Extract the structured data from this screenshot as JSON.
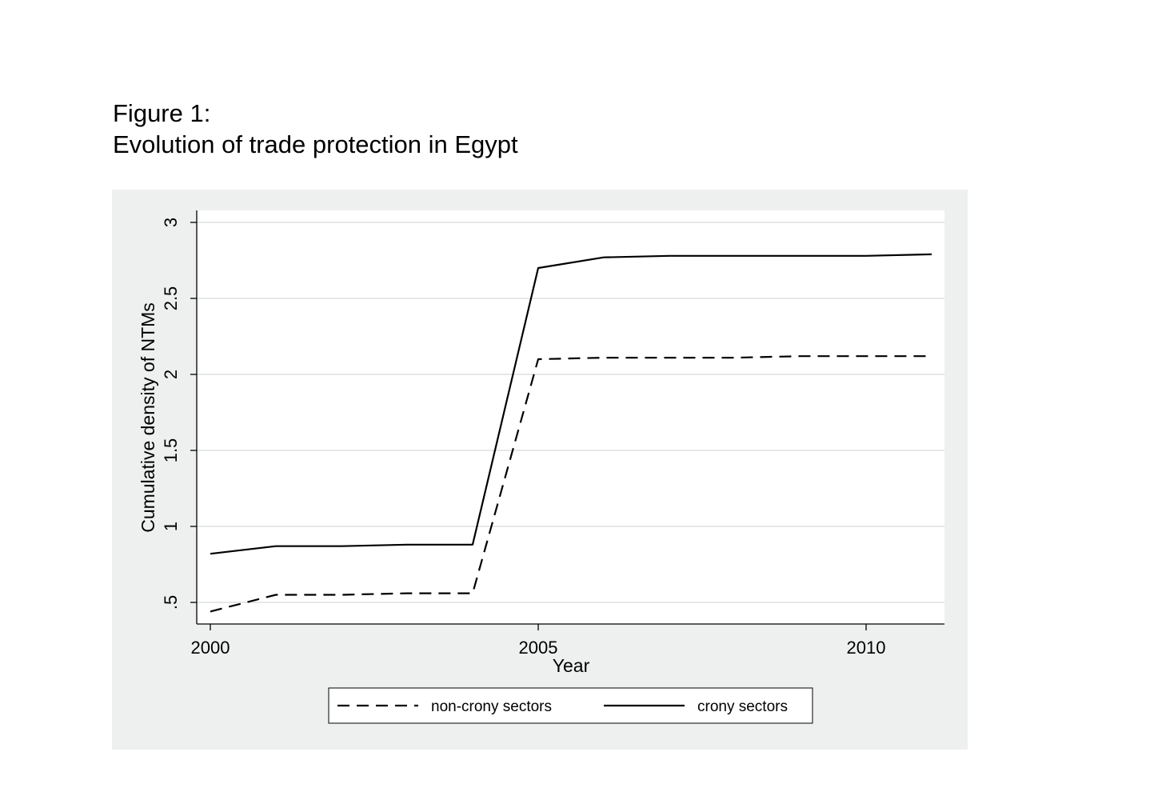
{
  "figure": {
    "label": "Figure 1:",
    "caption": "Evolution of trade protection in Egypt"
  },
  "chart_data": {
    "type": "line",
    "title": "",
    "xlabel": "Year",
    "ylabel": "Cumulative density of NTMs",
    "xlim": [
      2000,
      2011
    ],
    "ylim": [
      0.36,
      3.08
    ],
    "x_ticks": [
      2000,
      2005,
      2010
    ],
    "x_tick_labels": [
      "2000",
      "2005",
      "2010"
    ],
    "y_ticks": [
      0.5,
      1,
      1.5,
      2,
      2.5,
      3
    ],
    "y_tick_labels": [
      ".5",
      "1",
      "1.5",
      "2",
      "2.5",
      "3"
    ],
    "grid": "horizontal",
    "legend_position": "bottom",
    "x": [
      2000,
      2001,
      2002,
      2003,
      2004,
      2005,
      2006,
      2007,
      2008,
      2009,
      2010,
      2011
    ],
    "series": [
      {
        "name": "non-crony sectors",
        "style": "dashed",
        "color": "#000000",
        "values": [
          0.44,
          0.55,
          0.55,
          0.56,
          0.56,
          2.1,
          2.11,
          2.11,
          2.11,
          2.12,
          2.12,
          2.12
        ]
      },
      {
        "name": "crony sectors",
        "style": "solid",
        "color": "#000000",
        "values": [
          0.82,
          0.87,
          0.87,
          0.88,
          0.88,
          2.7,
          2.77,
          2.78,
          2.78,
          2.78,
          2.78,
          2.79
        ]
      }
    ],
    "colors": {
      "outer_background": "#eeefef",
      "plot_background": "#ffffff",
      "grid": "#e6e8e8",
      "axis": "#000000"
    }
  }
}
